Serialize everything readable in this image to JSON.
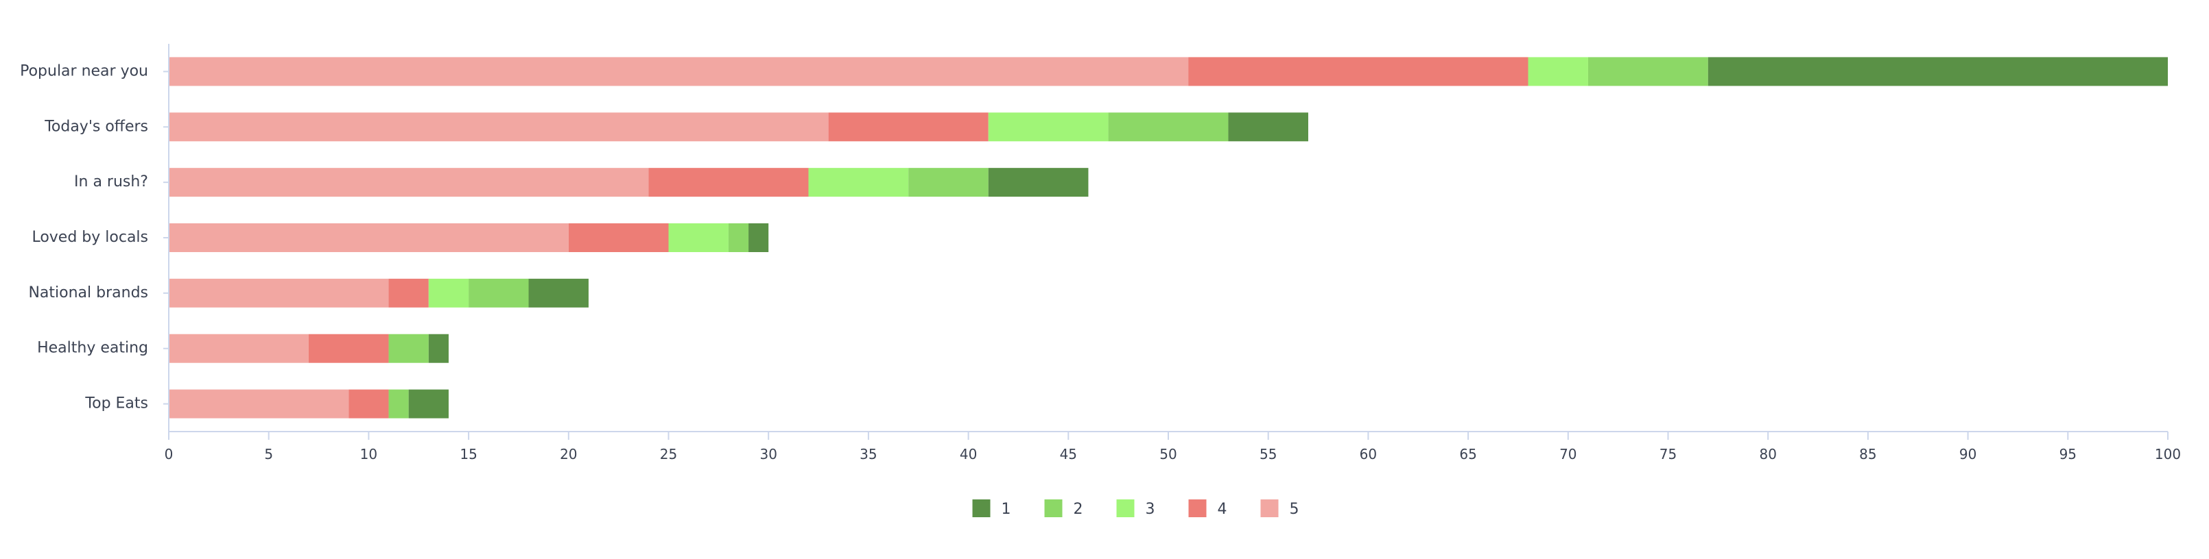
{
  "chart_data": {
    "type": "bar",
    "orientation": "horizontal",
    "stacked": true,
    "categories": [
      "Popular near you",
      "Today's offers",
      "In a rush?",
      "Loved by locals",
      "National brands",
      "Healthy eating",
      "Top Eats"
    ],
    "series": [
      {
        "name": "5",
        "color": "#f2a7a2",
        "values": [
          51,
          33,
          24,
          20,
          11,
          7,
          9
        ]
      },
      {
        "name": "4",
        "color": "#ed7d76",
        "values": [
          17,
          8,
          8,
          5,
          2,
          4,
          2
        ]
      },
      {
        "name": "3",
        "color": "#a0f577",
        "values": [
          3,
          6,
          5,
          3,
          2,
          0,
          0
        ]
      },
      {
        "name": "2",
        "color": "#8cd866",
        "values": [
          6,
          6,
          4,
          1,
          3,
          2,
          1
        ]
      },
      {
        "name": "1",
        "color": "#5a9146",
        "values": [
          23,
          4,
          5,
          1,
          3,
          1,
          2
        ]
      }
    ],
    "legend_order": [
      "1",
      "2",
      "3",
      "4",
      "5"
    ],
    "xlim": [
      0,
      100
    ],
    "xticks": [
      0,
      5,
      10,
      15,
      20,
      25,
      30,
      35,
      40,
      45,
      50,
      55,
      60,
      65,
      70,
      75,
      80,
      85,
      90,
      95,
      100
    ],
    "grid": false,
    "legend_position": "bottom-center"
  }
}
